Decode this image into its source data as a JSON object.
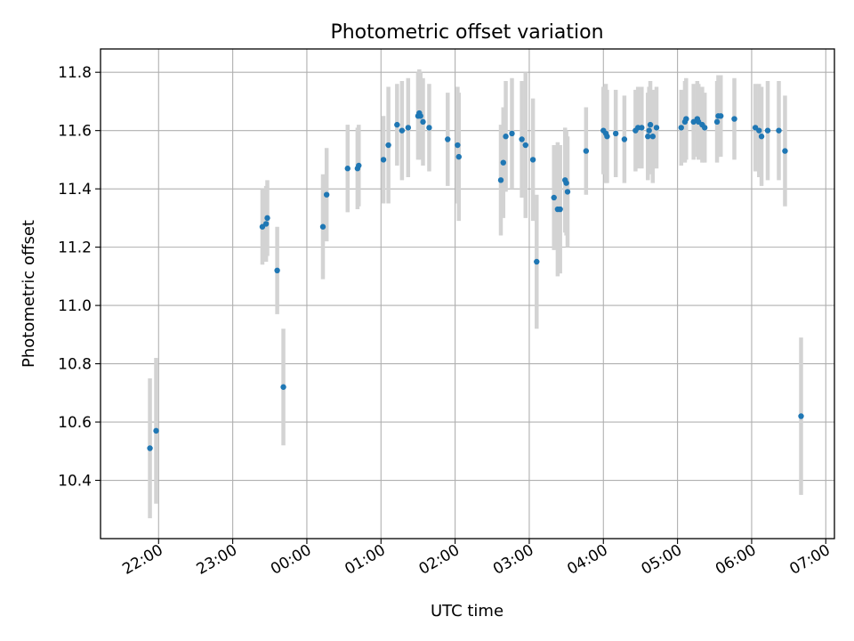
{
  "chart_data": {
    "type": "scatter",
    "title": "Photometric offset variation",
    "xlabel": "UTC time",
    "ylabel": "Photometric offset",
    "xlim": [
      "21:13",
      "07:07"
    ],
    "ylim": [
      10.2,
      11.88
    ],
    "grid": true,
    "x_ticks": [
      "22:00",
      "23:00",
      "00:00",
      "01:00",
      "02:00",
      "03:00",
      "04:00",
      "05:00",
      "06:00",
      "07:00"
    ],
    "y_ticks": [
      "10.4",
      "10.6",
      "10.8",
      "11.0",
      "11.2",
      "11.4",
      "11.6",
      "11.8"
    ],
    "colors": {
      "point": "#1f77b4",
      "errorbar": "#d3d3d3",
      "grid": "#b0b0b0",
      "axis": "#000000"
    },
    "series": [
      {
        "x": [
          "21:53",
          "21:58",
          "23:24",
          "23:27",
          "23:28",
          "23:36",
          "23:41",
          "00:13",
          "00:16",
          "00:33",
          "00:41",
          "00:42",
          "01:02",
          "01:06",
          "01:13",
          "01:17",
          "01:22",
          "01:30",
          "01:31",
          "01:32",
          "01:34",
          "01:39",
          "01:54",
          "02:02",
          "02:03",
          "02:37",
          "02:39",
          "02:41",
          "02:46",
          "02:54",
          "02:57",
          "03:03",
          "03:06",
          "03:20",
          "03:23",
          "03:25",
          "03:29",
          "03:30",
          "03:31",
          "03:46",
          "04:00",
          "04:02",
          "04:03",
          "04:10",
          "04:17",
          "04:26",
          "04:28",
          "04:31",
          "04:36",
          "04:37",
          "04:38",
          "04:40",
          "04:43",
          "05:03",
          "05:06",
          "05:07",
          "05:13",
          "05:16",
          "05:17",
          "05:20",
          "05:22",
          "05:32",
          "05:33",
          "05:35",
          "05:46",
          "06:03",
          "06:06",
          "06:08",
          "06:13",
          "06:22",
          "06:27",
          "06:40"
        ],
        "y": [
          10.51,
          10.57,
          11.27,
          11.28,
          11.3,
          11.12,
          10.72,
          11.27,
          11.38,
          11.47,
          11.47,
          11.48,
          11.5,
          11.55,
          11.62,
          11.6,
          11.61,
          11.65,
          11.66,
          11.65,
          11.63,
          11.61,
          11.57,
          11.55,
          11.51,
          11.43,
          11.49,
          11.58,
          11.59,
          11.57,
          11.55,
          11.5,
          11.15,
          11.37,
          11.33,
          11.33,
          11.43,
          11.42,
          11.39,
          11.53,
          11.6,
          11.59,
          11.58,
          11.59,
          11.57,
          11.6,
          11.61,
          11.61,
          11.58,
          11.6,
          11.62,
          11.58,
          11.61,
          11.61,
          11.63,
          11.64,
          11.63,
          11.64,
          11.63,
          11.62,
          11.61,
          11.63,
          11.65,
          11.65,
          11.64,
          11.61,
          11.6,
          11.58,
          11.6,
          11.6,
          11.53,
          10.62
        ],
        "err": [
          0.24,
          0.25,
          0.13,
          0.13,
          0.13,
          0.15,
          0.2,
          0.18,
          0.16,
          0.15,
          0.14,
          0.14,
          0.15,
          0.2,
          0.14,
          0.17,
          0.17,
          0.15,
          0.15,
          0.15,
          0.15,
          0.15,
          0.16,
          0.2,
          0.22,
          0.19,
          0.19,
          0.19,
          0.19,
          0.2,
          0.25,
          0.21,
          0.23,
          0.18,
          0.23,
          0.22,
          0.18,
          0.18,
          0.19,
          0.15,
          0.15,
          0.17,
          0.16,
          0.15,
          0.15,
          0.14,
          0.14,
          0.14,
          0.15,
          0.15,
          0.15,
          0.16,
          0.14,
          0.13,
          0.14,
          0.14,
          0.13,
          0.13,
          0.13,
          0.13,
          0.12,
          0.14,
          0.14,
          0.14,
          0.14,
          0.15,
          0.16,
          0.17,
          0.17,
          0.17,
          0.19,
          0.27
        ]
      }
    ]
  }
}
